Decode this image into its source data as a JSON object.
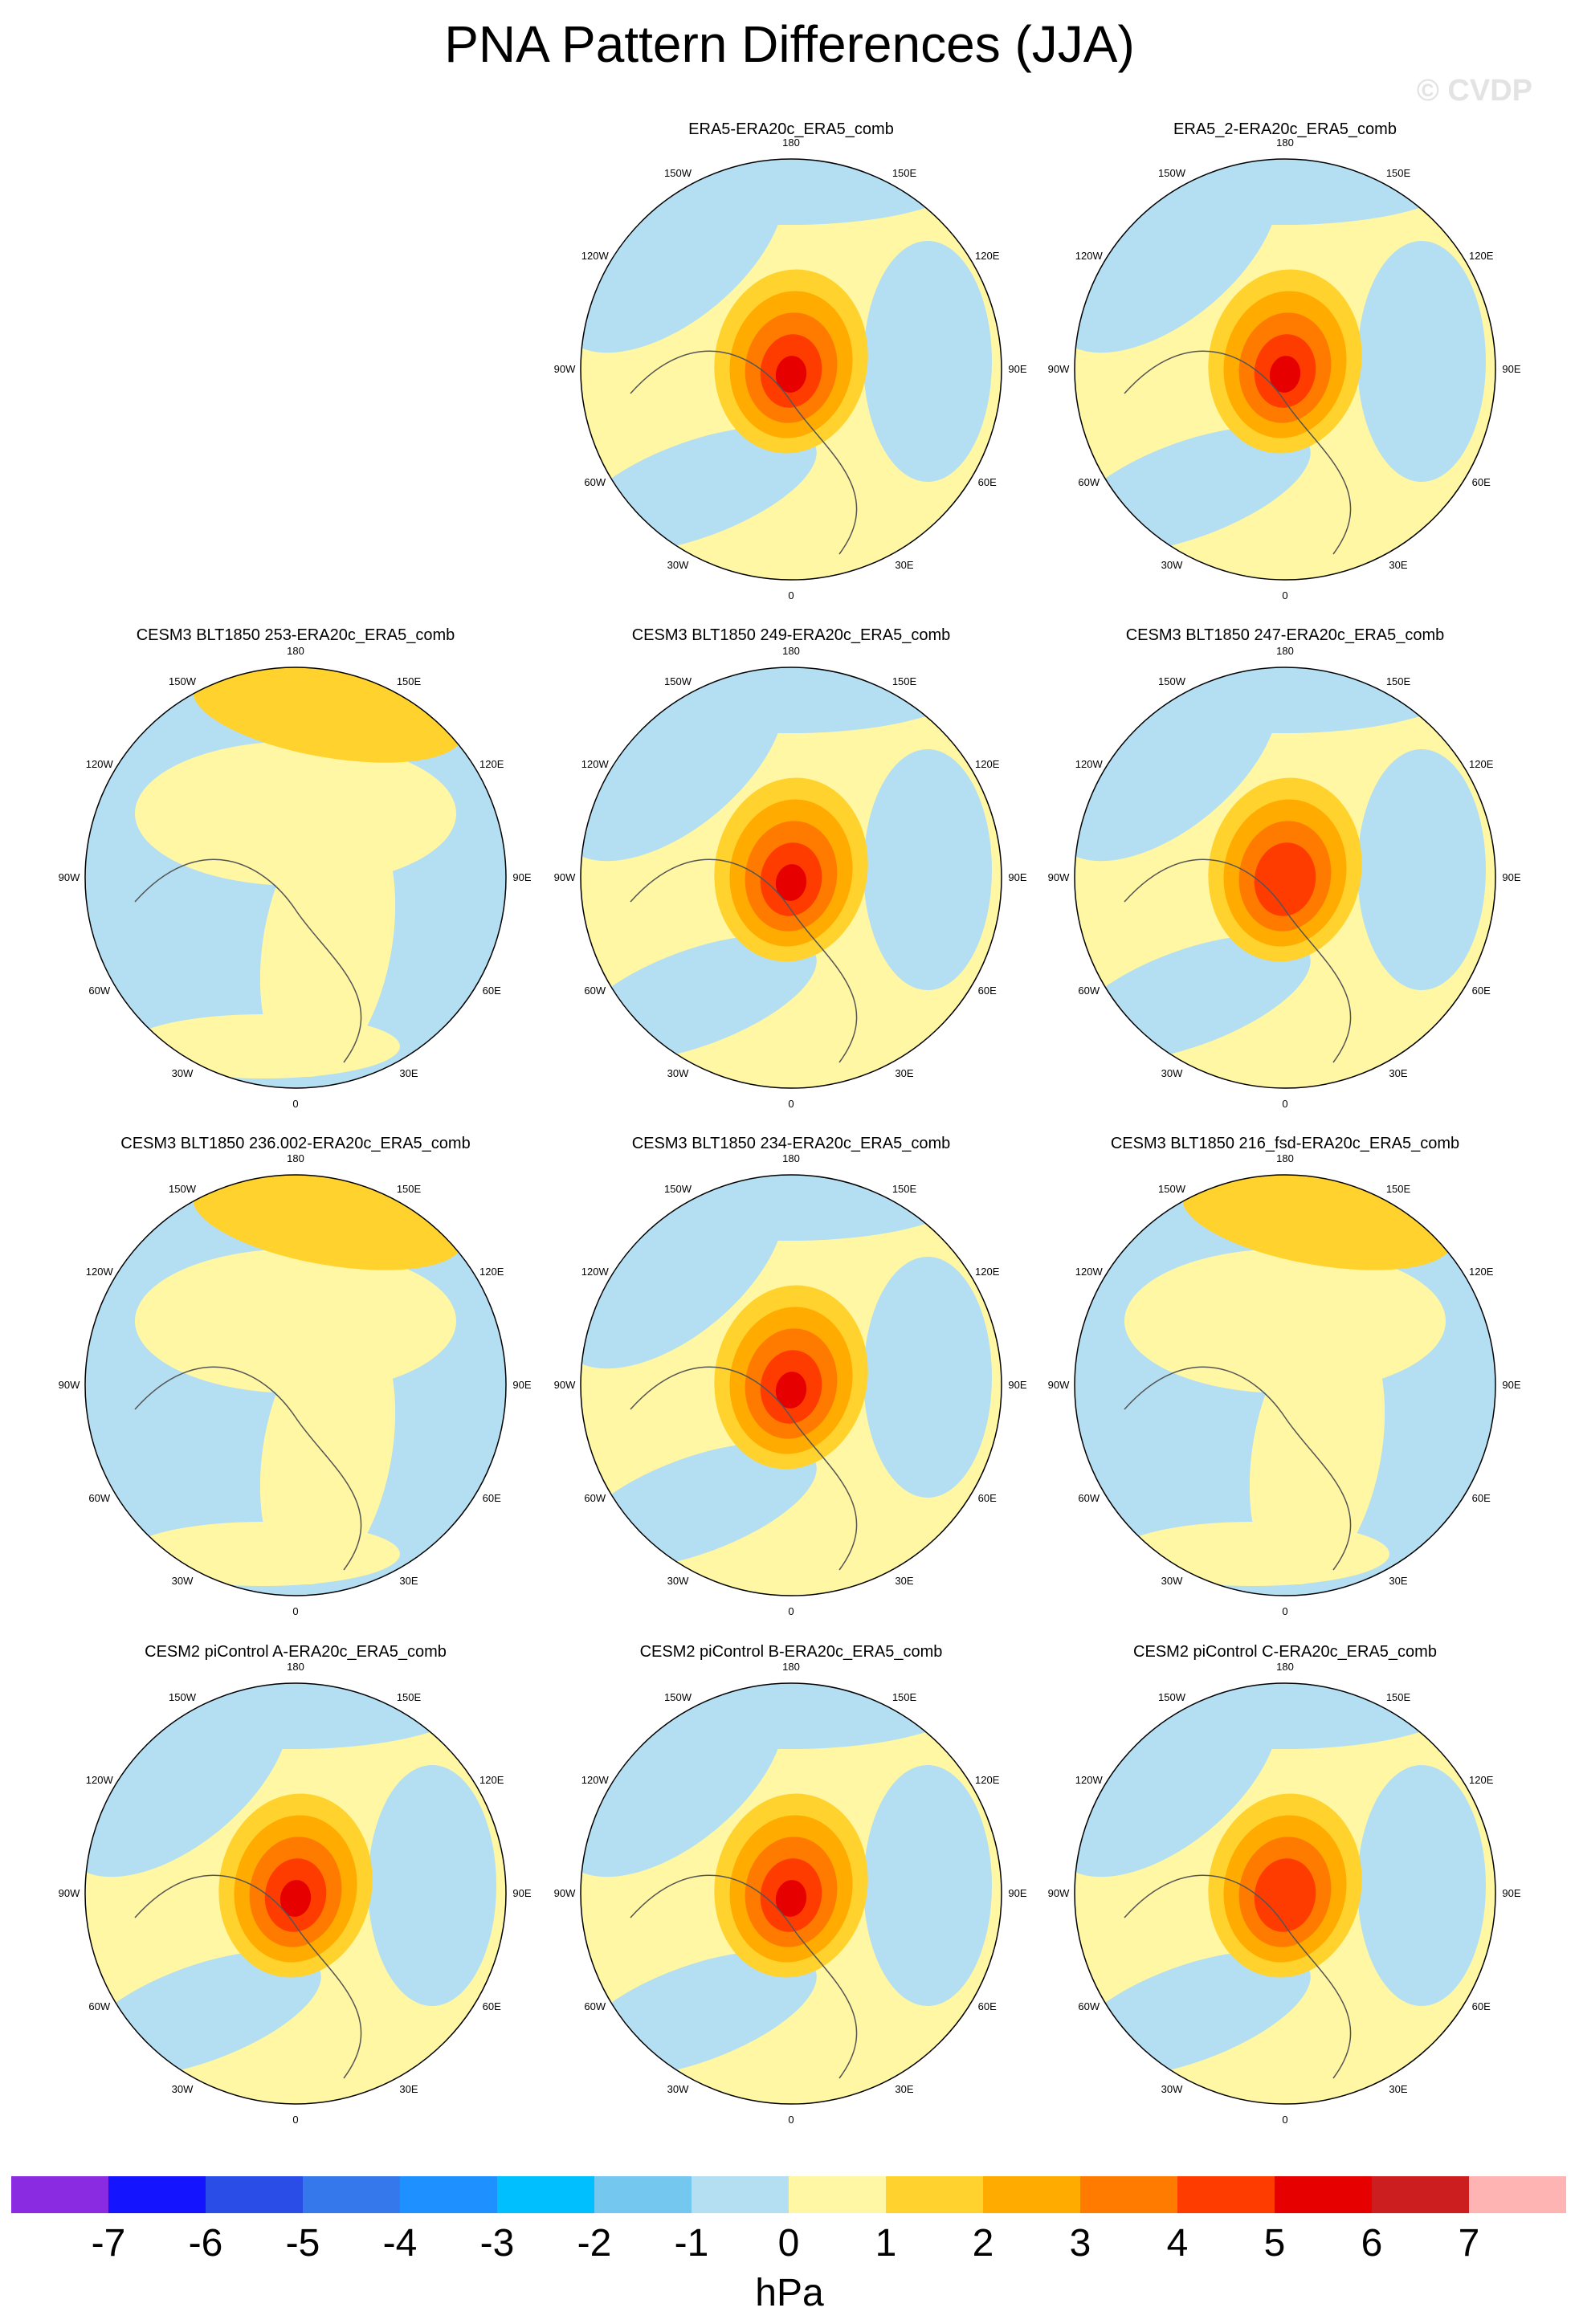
{
  "title": "PNA Pattern Differences (JJA)",
  "watermark": "© CVDP",
  "units": "hPa",
  "longitude_labels": [
    "180",
    "150E",
    "120E",
    "90E",
    "60E",
    "30E",
    "0",
    "30W",
    "60W",
    "90W",
    "120W",
    "150W"
  ],
  "colorbar": {
    "ticks": [
      "-7",
      "-6",
      "-5",
      "-4",
      "-3",
      "-2",
      "-1",
      "0",
      "1",
      "2",
      "3",
      "4",
      "5",
      "6",
      "7"
    ],
    "colors": [
      "#8a2be2",
      "#1414ff",
      "#2a4de8",
      "#3478ec",
      "#1e90ff",
      "#00bfff",
      "#74c8f0",
      "#b4def2",
      "#fff7a3",
      "#ffd22e",
      "#ffab00",
      "#ff7b00",
      "#ff3c00",
      "#e60000",
      "#cc1e1e",
      "#ffb4b4"
    ]
  },
  "map_colors": {
    "ocean_neg": "#b4def2",
    "pos1": "#fff7a3",
    "pos2": "#ffd22e",
    "pos3": "#ffab00",
    "pos4": "#ff7b00",
    "pos5": "#ff3c00",
    "pos6": "#e60000",
    "neg2": "#74c8f0",
    "neg3": "#00bfff",
    "coast": "#555555"
  },
  "panels": [
    {
      "title": "ERA5-ERA20c_ERA5_comb",
      "pattern": "polar",
      "peak": 6
    },
    {
      "title": "ERA5_2-ERA20c_ERA5_comb",
      "pattern": "polar",
      "peak": 6
    },
    {
      "title": "CESM3 BLT1850 253-ERA20c_ERA5_comb",
      "pattern": "pacific",
      "peak": 2
    },
    {
      "title": "CESM3 BLT1850 249-ERA20c_ERA5_comb",
      "pattern": "polar",
      "peak": 6
    },
    {
      "title": "CESM3 BLT1850 247-ERA20c_ERA5_comb",
      "pattern": "polar",
      "peak": 5
    },
    {
      "title": "CESM3 BLT1850 236.002-ERA20c_ERA5_comb",
      "pattern": "pacific",
      "peak": 2
    },
    {
      "title": "CESM3 BLT1850 234-ERA20c_ERA5_comb",
      "pattern": "polar",
      "peak": 6
    },
    {
      "title": "CESM3 BLT1850 216_fsd-ERA20c_ERA5_comb",
      "pattern": "pacific",
      "peak": 2
    },
    {
      "title": "CESM2 piControl A-ERA20c_ERA5_comb",
      "pattern": "polar",
      "peak": 6
    },
    {
      "title": "CESM2 piControl B-ERA20c_ERA5_comb",
      "pattern": "polar",
      "peak": 6
    },
    {
      "title": "CESM2 piControl C-ERA20c_ERA5_comb",
      "pattern": "polar",
      "peak": 5
    }
  ]
}
